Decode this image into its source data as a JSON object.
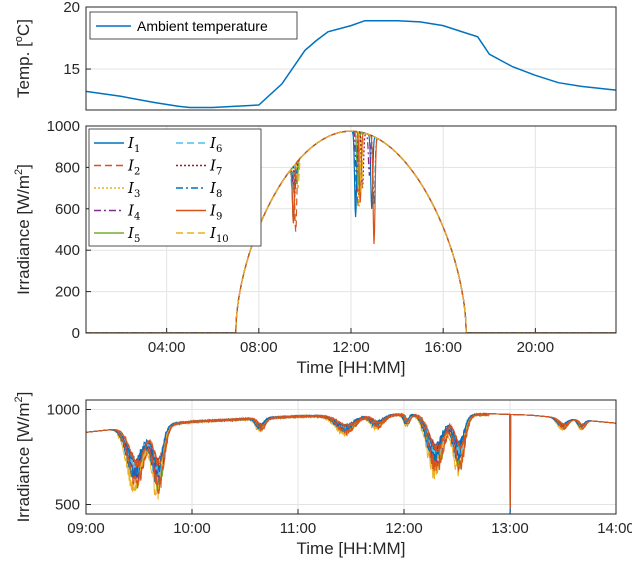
{
  "colors": [
    "#0072BD",
    "#D95319",
    "#EDB120",
    "#7E2F8E",
    "#77AC30",
    "#4DBEEE",
    "#A2142F",
    "#0072BD",
    "#D95319",
    "#EDB120"
  ],
  "chart_data": [
    {
      "type": "line",
      "ylabel_pre": "Temp. [",
      "ylabel_sup": "o",
      "ylabel_post": "C]",
      "xlim": [
        0.5,
        23.5
      ],
      "ylim": [
        11.7,
        20
      ],
      "yticks": [
        15,
        20
      ],
      "ytick_labels": [
        "15",
        "20"
      ],
      "grid": true,
      "legend": "top-left",
      "series": [
        {
          "name": "Ambient temperature",
          "color": "#0072BD",
          "x": [
            0.5,
            2,
            3.5,
            4.5,
            5,
            6,
            7,
            8,
            9,
            10,
            10.5,
            11,
            12,
            12.6,
            13,
            14,
            15,
            16,
            17,
            17.5,
            18,
            19,
            20,
            21,
            22,
            23.5
          ],
          "y": [
            13.2,
            12.8,
            12.3,
            12.0,
            11.9,
            11.9,
            12.0,
            12.1,
            13.8,
            16.5,
            17.3,
            18.0,
            18.5,
            18.9,
            18.9,
            18.9,
            18.8,
            18.5,
            17.9,
            17.6,
            16.2,
            15.2,
            14.5,
            13.9,
            13.6,
            13.3
          ]
        }
      ]
    },
    {
      "type": "line",
      "ylabel_pre": "Irradiance [W/m",
      "ylabel_sup": "2",
      "ylabel_post": "]",
      "xlabel": "Time [HH:MM]",
      "xlim": [
        0.5,
        23.5
      ],
      "ylim": [
        0,
        1000
      ],
      "xticks": [
        4,
        8,
        12,
        16,
        20
      ],
      "xtick_labels": [
        "04:00",
        "08:00",
        "12:00",
        "16:00",
        "20:00"
      ],
      "yticks": [
        0,
        200,
        400,
        600,
        800,
        1000
      ],
      "ytick_labels": [
        "0",
        "200",
        "400",
        "600",
        "800",
        "1000"
      ],
      "grid": true,
      "legend": "top-left",
      "daylight": {
        "sunrise": 7.0,
        "sunset": 17.0,
        "peak": 975
      },
      "series": [
        {
          "name": "I",
          "sub": "1",
          "dash": "",
          "dips": [
            [
              9.5,
              540
            ],
            [
              12.2,
              560
            ],
            [
              12.9,
              600
            ]
          ]
        },
        {
          "name": "I",
          "sub": "2",
          "dash": "7,4",
          "dips": [
            [
              9.6,
              490
            ],
            [
              12.3,
              610
            ]
          ]
        },
        {
          "name": "I",
          "sub": "3",
          "dash": "2,2",
          "dips": [
            [
              9.55,
              620
            ],
            [
              12.35,
              600
            ]
          ]
        },
        {
          "name": "I",
          "sub": "4",
          "dash": "7,3,2,3",
          "dips": [
            [
              9.5,
              700
            ],
            [
              12.25,
              680
            ],
            [
              12.8,
              760
            ]
          ]
        },
        {
          "name": "I",
          "sub": "5",
          "dash": "",
          "dips": [
            [
              9.65,
              720
            ],
            [
              12.3,
              700
            ]
          ]
        },
        {
          "name": "I",
          "sub": "6",
          "dash": "7,4",
          "dips": [
            [
              9.45,
              690
            ],
            [
              12.4,
              650
            ]
          ]
        },
        {
          "name": "I",
          "sub": "7",
          "dash": "2,2",
          "dips": [
            [
              9.6,
              730
            ],
            [
              12.5,
              700
            ]
          ]
        },
        {
          "name": "I",
          "sub": "8",
          "dash": "7,3,2,3",
          "dips": [
            [
              9.55,
              660
            ],
            [
              12.2,
              640
            ],
            [
              13.0,
              620
            ]
          ]
        },
        {
          "name": "I",
          "sub": "9",
          "dash": "",
          "dips": [
            [
              9.5,
              530
            ],
            [
              12.4,
              630
            ],
            [
              13.0,
              430
            ]
          ]
        },
        {
          "name": "I",
          "sub": "10",
          "dash": "7,4",
          "dips": [
            [
              9.7,
              700
            ],
            [
              12.45,
              670
            ]
          ]
        }
      ]
    },
    {
      "type": "line",
      "ylabel_pre": "Irradiance [W/m",
      "ylabel_sup": "2",
      "ylabel_post": "]",
      "xlabel": "Time [HH:MM]",
      "xlim": [
        9,
        14
      ],
      "ylim": [
        450,
        1050
      ],
      "xticks": [
        9,
        10,
        11,
        12,
        13,
        14
      ],
      "xtick_labels": [
        "09:00",
        "10:00",
        "11:00",
        "12:00",
        "13:00",
        "14:00"
      ],
      "yticks": [
        500,
        1000
      ],
      "ytick_labels": [
        "500",
        "1000"
      ],
      "grid": true,
      "baseline": {
        "x": [
          9,
          10,
          11,
          12,
          12.8,
          13.2,
          14
        ],
        "y": [
          880,
          940,
          968,
          977,
          978,
          970,
          928
        ]
      },
      "dips": [
        {
          "center": 9.47,
          "width": 0.1,
          "depth": 330
        },
        {
          "center": 9.68,
          "width": 0.07,
          "depth": 370
        },
        {
          "center": 10.65,
          "width": 0.05,
          "depth": 70
        },
        {
          "center": 11.45,
          "width": 0.12,
          "depth": 100
        },
        {
          "center": 11.75,
          "width": 0.08,
          "depth": 70
        },
        {
          "center": 12.3,
          "width": 0.1,
          "depth": 320
        },
        {
          "center": 12.52,
          "width": 0.07,
          "depth": 300
        },
        {
          "center": 12.03,
          "width": 0.03,
          "depth": 60
        },
        {
          "center": 13.5,
          "width": 0.06,
          "depth": 60
        },
        {
          "center": 13.68,
          "width": 0.04,
          "depth": 50
        }
      ],
      "spike": {
        "x": 13.0,
        "y": 460
      }
    }
  ]
}
